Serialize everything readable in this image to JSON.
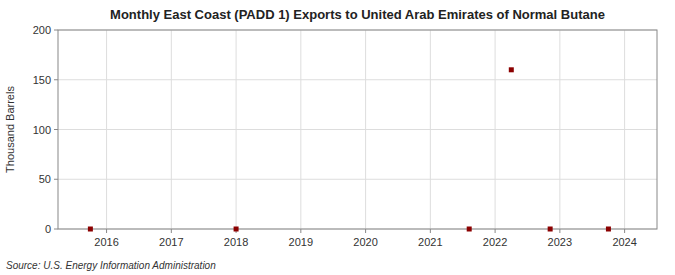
{
  "chart_data": {
    "type": "scatter",
    "title": "Monthly East Coast (PADD 1) Exports to United Arab Emirates of Normal Butane",
    "ylabel": "Thousand Barrels",
    "source": "Source: U.S. Energy Information Administration",
    "x": [
      2015.75,
      2018.0,
      2021.6,
      2022.25,
      2022.85,
      2023.75
    ],
    "values": [
      0,
      0,
      0,
      160,
      0,
      0
    ],
    "color": "#8b0000",
    "marker": "square",
    "xlim": [
      2015.25,
      2024.5
    ],
    "ylim": [
      0,
      200
    ],
    "xticks": [
      2016,
      2017,
      2018,
      2019,
      2020,
      2021,
      2022,
      2023,
      2024
    ],
    "yticks": [
      0,
      50,
      100,
      150,
      200
    ],
    "grid": true
  }
}
